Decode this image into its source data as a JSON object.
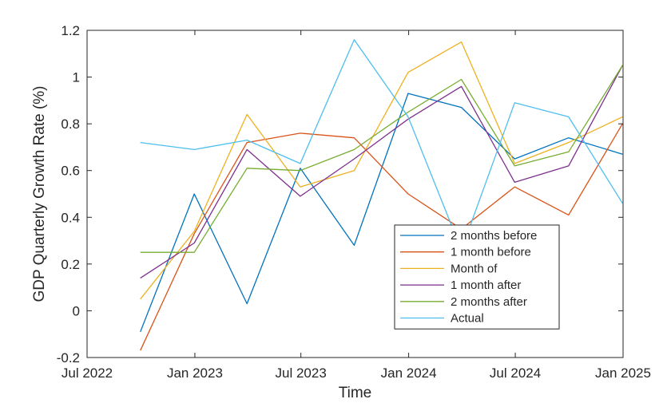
{
  "chart_data": {
    "type": "line",
    "xlabel": "Time",
    "ylabel": "GDP Quarterly Growth Rate (%)",
    "xlim": [
      "2022-07-01",
      "2025-01-01"
    ],
    "ylim": [
      -0.2,
      1.2
    ],
    "x_ticks": [
      "2022-07-01",
      "2023-01-01",
      "2023-07-01",
      "2024-01-01",
      "2024-07-01",
      "2025-01-01"
    ],
    "x_tick_labels": [
      "Jul 2022",
      "Jan 2023",
      "Jul 2023",
      "Jan 2024",
      "Jul 2024",
      "Jan 2025"
    ],
    "y_ticks": [
      -0.2,
      0,
      0.2,
      0.4,
      0.6,
      0.8,
      1,
      1.2
    ],
    "y_tick_labels": [
      "-0.2",
      "0",
      "0.2",
      "0.4",
      "0.6",
      "0.8",
      "1",
      "1.2"
    ],
    "grid": false,
    "legend_position": "bottom-right",
    "x": [
      "2022-09-30",
      "2022-12-31",
      "2023-03-31",
      "2023-06-30",
      "2023-09-30",
      "2023-12-31",
      "2024-03-31",
      "2024-06-30",
      "2024-09-30",
      "2024-12-31"
    ],
    "series": [
      {
        "name": "2 months before",
        "color": "#0072BD",
        "values": [
          -0.09,
          0.5,
          0.03,
          0.61,
          0.28,
          0.93,
          0.87,
          0.65,
          0.74,
          0.67
        ]
      },
      {
        "name": "1 month before",
        "color": "#D95319",
        "values": [
          -0.17,
          0.33,
          0.72,
          0.76,
          0.74,
          0.5,
          0.35,
          0.53,
          0.41,
          0.8
        ]
      },
      {
        "name": "Month of",
        "color": "#EDB120",
        "values": [
          0.05,
          0.34,
          0.84,
          0.53,
          0.6,
          1.02,
          1.15,
          0.63,
          0.72,
          0.83
        ]
      },
      {
        "name": "1 month after",
        "color": "#7E2F8E",
        "values": [
          0.14,
          0.29,
          0.69,
          0.49,
          0.65,
          0.82,
          0.96,
          0.55,
          0.62,
          1.05
        ]
      },
      {
        "name": "2 months after",
        "color": "#77AC30",
        "values": [
          0.25,
          0.25,
          0.61,
          0.6,
          0.69,
          0.85,
          0.99,
          0.62,
          0.68,
          1.05
        ]
      },
      {
        "name": "Actual",
        "color": "#4DBEEE",
        "values": [
          0.72,
          0.69,
          0.73,
          0.63,
          1.16,
          0.83,
          0.26,
          0.89,
          0.83,
          0.46
        ]
      }
    ]
  }
}
